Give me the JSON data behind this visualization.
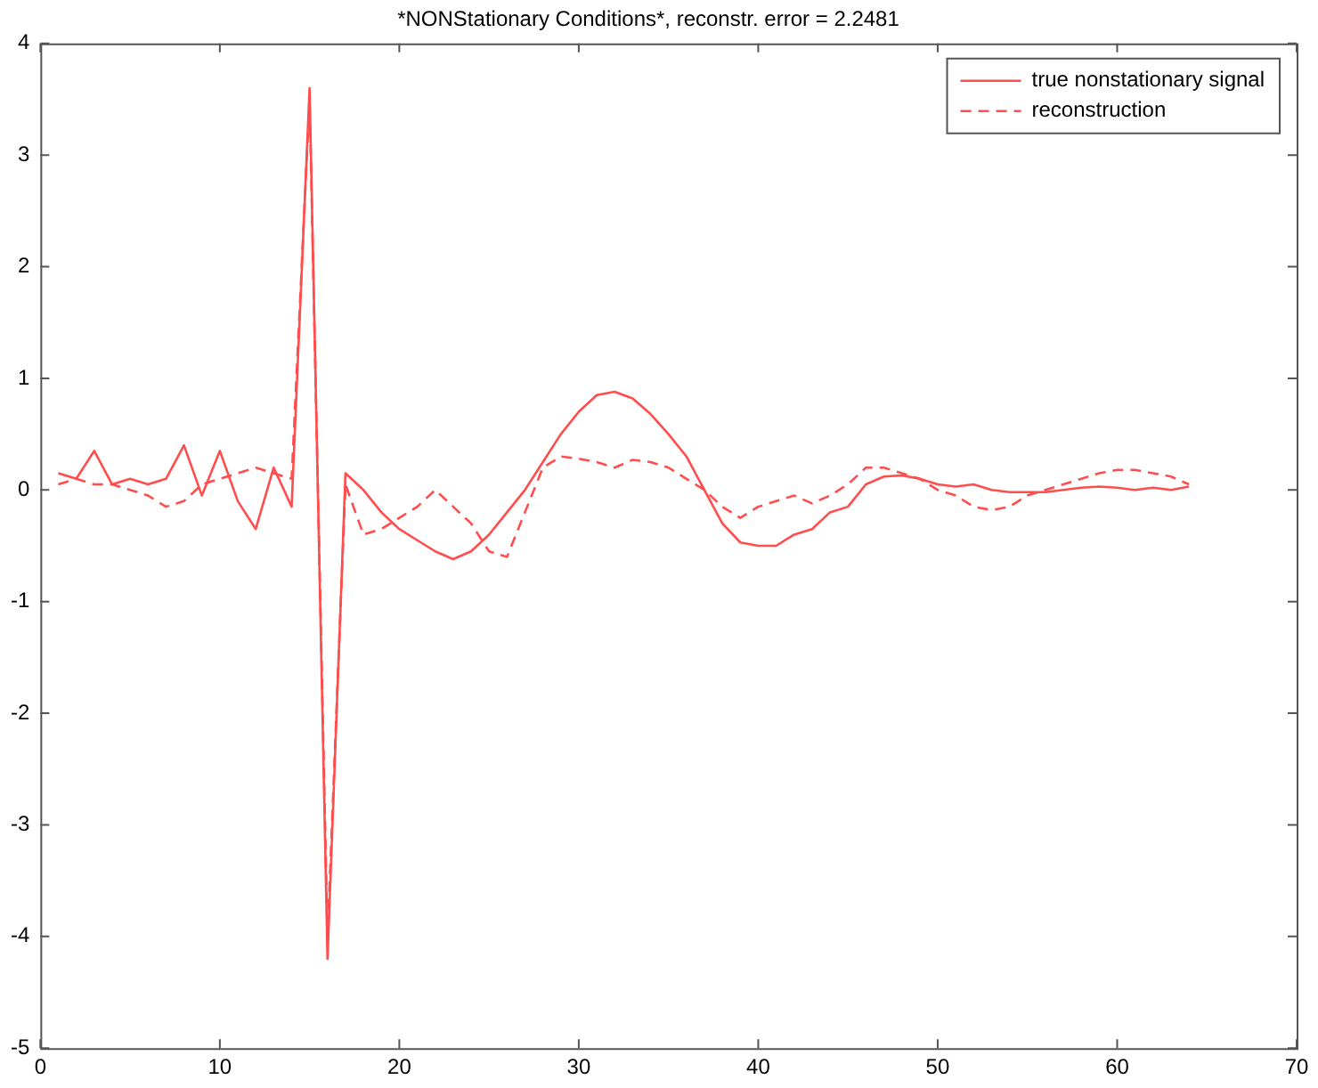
{
  "chart_data": {
    "type": "line",
    "title": "*NONStationary Conditions*, reconstr. error = 2.2481",
    "x": [
      1,
      2,
      3,
      4,
      5,
      6,
      7,
      8,
      9,
      10,
      11,
      12,
      13,
      14,
      15,
      16,
      17,
      18,
      19,
      20,
      21,
      22,
      23,
      24,
      25,
      26,
      27,
      28,
      29,
      30,
      31,
      32,
      33,
      34,
      35,
      36,
      37,
      38,
      39,
      40,
      41,
      42,
      43,
      44,
      45,
      46,
      47,
      48,
      49,
      50,
      51,
      52,
      53,
      54,
      55,
      56,
      57,
      58,
      59,
      60,
      61,
      62,
      63,
      64
    ],
    "series": [
      {
        "name": "true nonstationary signal",
        "color": "#ff4d4d",
        "line_style": "solid",
        "values": [
          0.15,
          0.1,
          0.35,
          0.05,
          0.1,
          0.05,
          0.1,
          0.4,
          -0.05,
          0.35,
          -0.1,
          -0.35,
          0.2,
          -0.15,
          3.6,
          -4.2,
          0.15,
          0.0,
          -0.2,
          -0.35,
          -0.45,
          -0.55,
          -0.62,
          -0.55,
          -0.4,
          -0.2,
          0.0,
          0.25,
          0.5,
          0.7,
          0.85,
          0.88,
          0.82,
          0.68,
          0.5,
          0.3,
          0.0,
          -0.3,
          -0.47,
          -0.5,
          -0.5,
          -0.4,
          -0.35,
          -0.2,
          -0.15,
          0.05,
          0.12,
          0.13,
          0.1,
          0.05,
          0.03,
          0.05,
          0.0,
          -0.02,
          -0.02,
          -0.02,
          0.0,
          0.02,
          0.03,
          0.02,
          0.0,
          0.02,
          0.0,
          0.03
        ]
      },
      {
        "name": "reconstruction",
        "color": "#ff4d4d",
        "line_style": "dashed",
        "values": [
          0.05,
          0.1,
          0.05,
          0.05,
          0.0,
          -0.05,
          -0.15,
          -0.1,
          0.05,
          0.1,
          0.15,
          0.2,
          0.15,
          0.1,
          3.5,
          -4.0,
          0.05,
          -0.4,
          -0.35,
          -0.25,
          -0.15,
          0.0,
          -0.15,
          -0.3,
          -0.55,
          -0.6,
          -0.2,
          0.2,
          0.3,
          0.28,
          0.25,
          0.2,
          0.27,
          0.25,
          0.2,
          0.1,
          0.0,
          -0.15,
          -0.25,
          -0.15,
          -0.1,
          -0.05,
          -0.12,
          -0.05,
          0.05,
          0.2,
          0.2,
          0.15,
          0.1,
          0.0,
          -0.05,
          -0.15,
          -0.18,
          -0.15,
          -0.05,
          0.0,
          0.05,
          0.1,
          0.15,
          0.18,
          0.18,
          0.15,
          0.12,
          0.05
        ]
      }
    ],
    "xlim": [
      0,
      70
    ],
    "xticks": [
      0,
      10,
      20,
      30,
      40,
      50,
      60,
      70
    ],
    "ylim": [
      -5,
      4
    ],
    "yticks": [
      -5,
      -4,
      -3,
      -2,
      -1,
      0,
      1,
      2,
      3,
      4
    ],
    "grid": false,
    "legend": "top right",
    "marker": "none"
  }
}
